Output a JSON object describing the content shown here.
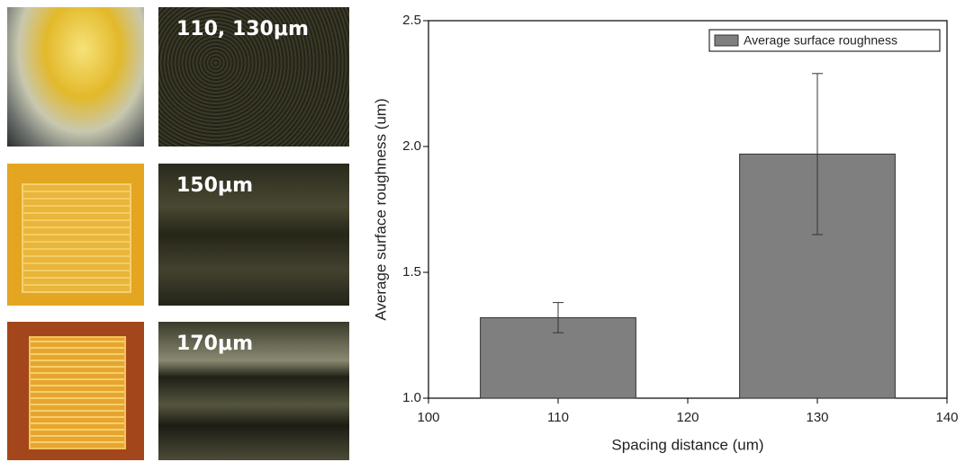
{
  "panels": [
    {
      "label": "110, 130μm"
    },
    {
      "label": "150μm"
    },
    {
      "label": "170μm"
    }
  ],
  "chart_data": {
    "type": "bar",
    "x_label": "Spacing distance (um)",
    "y_label": "Average surface roughness (um)",
    "x": [
      110,
      130
    ],
    "bar_width": 12,
    "series": [
      {
        "name": "Average surface roughness",
        "color": "#7f7f7f",
        "values": [
          1.32,
          1.97
        ],
        "errors": [
          0.06,
          0.32
        ]
      }
    ],
    "xlim": [
      100,
      140
    ],
    "xticks": [
      100,
      110,
      120,
      130,
      140
    ],
    "ylim": [
      1.0,
      2.5
    ],
    "yticks": [
      {
        "value": 1.0,
        "label": "1.0"
      },
      1.5,
      {
        "value": 2.0,
        "label": "2.0"
      },
      2.5
    ],
    "legend": "upper right"
  }
}
